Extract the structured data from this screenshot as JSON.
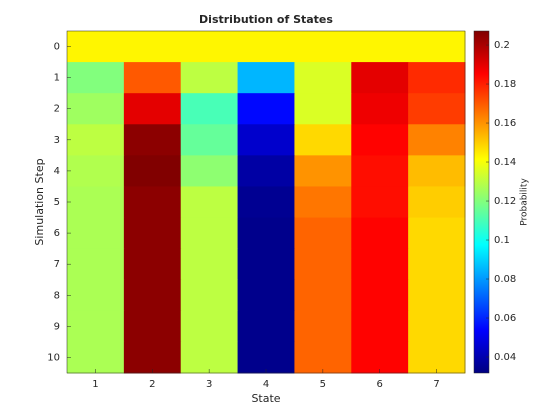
{
  "chart_data": {
    "type": "heatmap",
    "title": "Distribution of States",
    "x_label": "State",
    "y_label": "Simulation Step",
    "colorbar_label": "Probability",
    "colormap": "jet",
    "x": [
      1,
      2,
      3,
      4,
      5,
      6,
      7
    ],
    "y": [
      0,
      1,
      2,
      3,
      4,
      5,
      6,
      7,
      8,
      9,
      10
    ],
    "values": [
      [
        0.1429,
        0.1429,
        0.1429,
        0.1429,
        0.1429,
        0.1429,
        0.1429
      ],
      [
        0.12,
        0.17,
        0.13,
        0.085,
        0.135,
        0.19,
        0.178
      ],
      [
        0.125,
        0.19,
        0.11,
        0.055,
        0.135,
        0.188,
        0.175
      ],
      [
        0.13,
        0.205,
        0.115,
        0.045,
        0.148,
        0.185,
        0.163
      ],
      [
        0.128,
        0.207,
        0.122,
        0.038,
        0.16,
        0.183,
        0.153
      ],
      [
        0.127,
        0.205,
        0.13,
        0.035,
        0.165,
        0.183,
        0.15
      ],
      [
        0.127,
        0.205,
        0.13,
        0.034,
        0.168,
        0.185,
        0.148
      ],
      [
        0.127,
        0.205,
        0.13,
        0.034,
        0.168,
        0.185,
        0.148
      ],
      [
        0.127,
        0.205,
        0.13,
        0.034,
        0.168,
        0.185,
        0.148
      ],
      [
        0.127,
        0.205,
        0.13,
        0.034,
        0.168,
        0.185,
        0.148
      ],
      [
        0.127,
        0.205,
        0.13,
        0.034,
        0.168,
        0.185,
        0.148
      ]
    ],
    "clim": [
      0.0318,
      0.2072
    ],
    "colorbar_ticks": [
      0.04,
      0.06,
      0.08,
      0.1,
      0.12,
      0.14,
      0.16,
      0.18,
      0.2
    ]
  }
}
